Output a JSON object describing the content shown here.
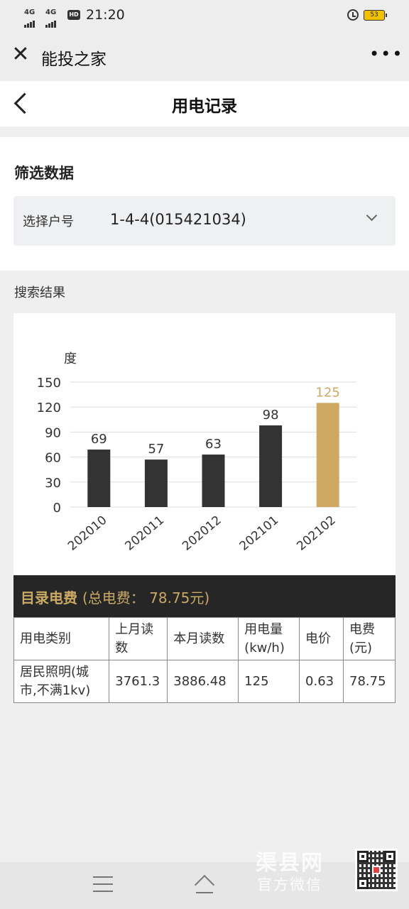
{
  "status": {
    "network1": "4G",
    "network2": "4G",
    "time": "21:20",
    "battery": "53"
  },
  "wechat": {
    "title": "能投之家"
  },
  "nav": {
    "title": "用电记录"
  },
  "filter": {
    "title": "筛选数据",
    "select_label": "选择户号",
    "select_value": "1-4-4(015421034)"
  },
  "results": {
    "label": "搜索结果"
  },
  "chart_data": {
    "type": "bar",
    "ylabel": "度",
    "categories": [
      "202010",
      "202011",
      "202012",
      "202101",
      "202102"
    ],
    "values": [
      69,
      57,
      63,
      98,
      125
    ],
    "ylim": [
      0,
      150
    ],
    "yticks": [
      0,
      30,
      60,
      90,
      120,
      150
    ],
    "colors": {
      "default": "#333333",
      "highlight": "#cfa963"
    },
    "highlight_index": 4,
    "grid": true
  },
  "fee": {
    "title": "目录电费",
    "total_prefix": "(总电费：",
    "total_value": "78.75",
    "total_suffix": "元)",
    "headers": [
      "用电类别",
      "上月读数",
      "本月读数",
      "用电量(kw/h)",
      "电价",
      "电费(元)"
    ],
    "rows": [
      [
        "居民照明(城市,不满1kv)",
        "3761.3",
        "3886.48",
        "125",
        "0.63",
        "78.75"
      ]
    ]
  },
  "watermark": {
    "logo": "渠县网",
    "sub": "官方微信"
  }
}
